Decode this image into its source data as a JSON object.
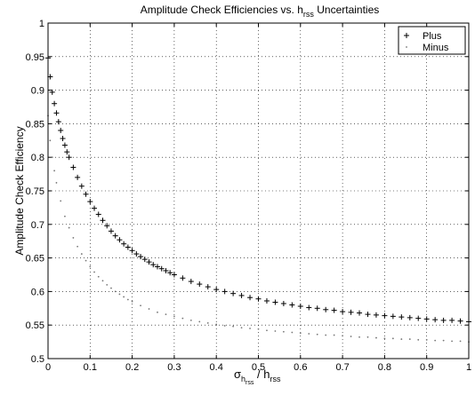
{
  "chart_data": {
    "type": "scatter",
    "title": {
      "main": "Amplitude Check Efficiencies vs. h",
      "sub": "rss",
      "tail": " Uncertainties"
    },
    "xlabel": {
      "sigma": "σ",
      "h_sub": "h",
      "rss": "rss",
      "slash": " / h",
      "rss2": "rss"
    },
    "ylabel": "Amplitude Check Efficiency",
    "xlim": [
      0,
      1
    ],
    "ylim": [
      0.5,
      1
    ],
    "xticks": [
      "0",
      "0.1",
      "0.2",
      "0.3",
      "0.4",
      "0.5",
      "0.6",
      "0.7",
      "0.8",
      "0.9",
      "1"
    ],
    "yticks": [
      "0.5",
      "0.55",
      "0.6",
      "0.65",
      "0.7",
      "0.75",
      "0.8",
      "0.85",
      "0.9",
      "0.95",
      "1"
    ],
    "grid": true,
    "legend_position": "top-right",
    "series": [
      {
        "name": "Plus",
        "marker": "+",
        "x": [
          0,
          0.005,
          0.01,
          0.015,
          0.02,
          0.025,
          0.03,
          0.035,
          0.04,
          0.045,
          0.05,
          0.06,
          0.07,
          0.08,
          0.09,
          0.1,
          0.11,
          0.12,
          0.13,
          0.14,
          0.15,
          0.16,
          0.17,
          0.18,
          0.19,
          0.2,
          0.21,
          0.22,
          0.23,
          0.24,
          0.25,
          0.26,
          0.27,
          0.28,
          0.29,
          0.3,
          0.32,
          0.34,
          0.36,
          0.38,
          0.4,
          0.42,
          0.44,
          0.46,
          0.48,
          0.5,
          0.52,
          0.54,
          0.56,
          0.58,
          0.6,
          0.62,
          0.64,
          0.66,
          0.68,
          0.7,
          0.72,
          0.74,
          0.76,
          0.78,
          0.8,
          0.82,
          0.84,
          0.86,
          0.88,
          0.9,
          0.92,
          0.94,
          0.96,
          0.98,
          1.0
        ],
        "y": [
          0.948,
          0.92,
          0.897,
          0.88,
          0.866,
          0.853,
          0.84,
          0.828,
          0.818,
          0.808,
          0.8,
          0.785,
          0.77,
          0.757,
          0.745,
          0.734,
          0.724,
          0.715,
          0.706,
          0.698,
          0.69,
          0.683,
          0.677,
          0.671,
          0.666,
          0.661,
          0.656,
          0.652,
          0.648,
          0.644,
          0.64,
          0.637,
          0.634,
          0.631,
          0.628,
          0.625,
          0.62,
          0.615,
          0.611,
          0.607,
          0.603,
          0.6,
          0.597,
          0.594,
          0.591,
          0.589,
          0.586,
          0.584,
          0.582,
          0.58,
          0.578,
          0.576,
          0.575,
          0.573,
          0.572,
          0.57,
          0.569,
          0.568,
          0.566,
          0.565,
          0.564,
          0.563,
          0.562,
          0.561,
          0.56,
          0.559,
          0.558,
          0.557,
          0.557,
          0.556,
          0.555
        ]
      },
      {
        "name": "Minus",
        "marker": "·",
        "x": [
          0,
          0.005,
          0.01,
          0.015,
          0.02,
          0.03,
          0.04,
          0.05,
          0.06,
          0.07,
          0.08,
          0.09,
          0.1,
          0.11,
          0.12,
          0.13,
          0.14,
          0.15,
          0.16,
          0.17,
          0.18,
          0.19,
          0.2,
          0.22,
          0.24,
          0.26,
          0.28,
          0.3,
          0.32,
          0.34,
          0.36,
          0.38,
          0.4,
          0.42,
          0.44,
          0.46,
          0.48,
          0.5,
          0.52,
          0.54,
          0.56,
          0.58,
          0.6,
          0.62,
          0.64,
          0.66,
          0.68,
          0.7,
          0.72,
          0.74,
          0.76,
          0.78,
          0.8,
          0.82,
          0.84,
          0.86,
          0.88,
          0.9,
          0.92,
          0.94,
          0.96,
          0.98,
          1.0
        ],
        "y": [
          0.862,
          0.825,
          0.8,
          0.78,
          0.762,
          0.735,
          0.712,
          0.695,
          0.68,
          0.667,
          0.656,
          0.646,
          0.637,
          0.629,
          0.622,
          0.616,
          0.61,
          0.605,
          0.6,
          0.596,
          0.592,
          0.588,
          0.585,
          0.579,
          0.574,
          0.569,
          0.566,
          0.563,
          0.56,
          0.557,
          0.555,
          0.553,
          0.551,
          0.549,
          0.548,
          0.546,
          0.545,
          0.544,
          0.542,
          0.541,
          0.54,
          0.539,
          0.538,
          0.537,
          0.536,
          0.535,
          0.535,
          0.534,
          0.533,
          0.532,
          0.532,
          0.531,
          0.53,
          0.53,
          0.529,
          0.529,
          0.528,
          0.528,
          0.527,
          0.527,
          0.526,
          0.526,
          0.525
        ]
      }
    ]
  }
}
